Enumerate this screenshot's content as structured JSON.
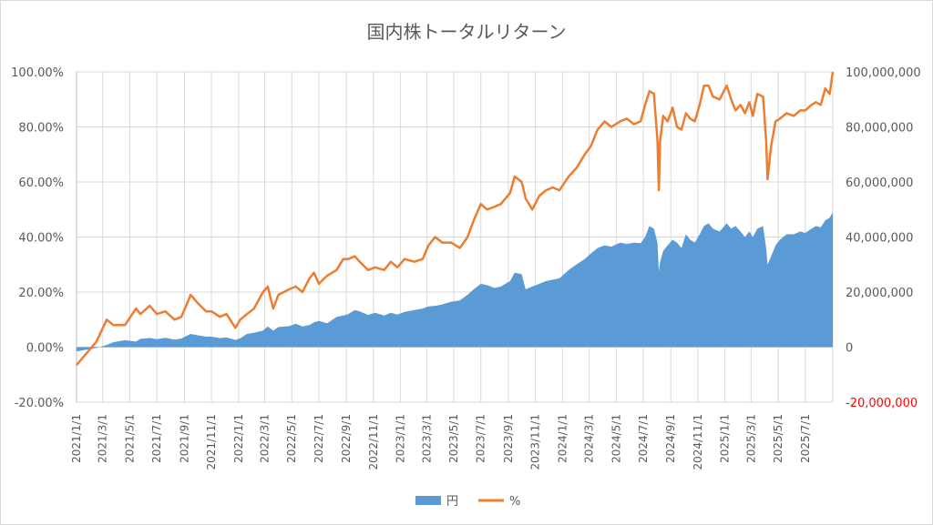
{
  "chart_data": {
    "type": "area+line",
    "title": "国内株トータルリターン",
    "legend": {
      "placement": "bottom",
      "entries": [
        "円",
        "%"
      ]
    },
    "colors": {
      "yen": "#5b9bd5",
      "pct": "#ed7d31",
      "grid": "#d9d9d9",
      "negative_label": "#ff0000"
    },
    "grid": true,
    "x_range": [
      "2021-01-01",
      "2025-09-01"
    ],
    "x_tick_labels": [
      "2021/1/1",
      "2021/3/1",
      "2021/5/1",
      "2021/7/1",
      "2021/9/1",
      "2021/11/1",
      "2022/1/1",
      "2022/3/1",
      "2022/5/1",
      "2022/7/1",
      "2022/9/1",
      "2022/11/1",
      "2023/1/1",
      "2023/3/1",
      "2023/5/1",
      "2023/7/1",
      "2023/9/1",
      "2023/11/1",
      "2024/1/1",
      "2024/3/1",
      "2024/5/1",
      "2024/7/1",
      "2024/9/1",
      "2024/11/1",
      "2025/1/1",
      "2025/3/1",
      "2025/5/1",
      "2025/7/1"
    ],
    "y_left": {
      "min": -20,
      "max": 100,
      "tick_labels": [
        "100.00%",
        "80.00%",
        "60.00%",
        "40.00%",
        "20.00%",
        "0.00%",
        "-20.00%"
      ]
    },
    "y_right": {
      "min": -20000000,
      "max": 100000000,
      "tick_labels": [
        "100,000,000",
        "80,000,000",
        "60,000,000",
        "40,000,000",
        "20,000,000",
        "0",
        "-20,000,000"
      ]
    },
    "series": [
      {
        "name": "円",
        "kind": "area",
        "axis": "right",
        "x": [
          "2021-01-01",
          "2021-02-15",
          "2021-03-10",
          "2021-03-25",
          "2021-04-20",
          "2021-05-15",
          "2021-05-25",
          "2021-06-15",
          "2021-07-01",
          "2021-07-20",
          "2021-08-10",
          "2021-08-25",
          "2021-09-05",
          "2021-09-15",
          "2021-10-01",
          "2021-10-20",
          "2021-11-01",
          "2021-11-20",
          "2021-12-05",
          "2021-12-25",
          "2022-01-05",
          "2022-01-20",
          "2022-02-05",
          "2022-02-25",
          "2022-03-08",
          "2022-03-20",
          "2022-04-01",
          "2022-04-25",
          "2022-05-10",
          "2022-05-25",
          "2022-06-10",
          "2022-06-20",
          "2022-07-01",
          "2022-07-20",
          "2022-08-10",
          "2022-08-25",
          "2022-09-05",
          "2022-09-20",
          "2022-10-01",
          "2022-10-20",
          "2022-11-05",
          "2022-11-25",
          "2022-12-10",
          "2022-12-25",
          "2023-01-10",
          "2023-02-01",
          "2023-02-20",
          "2023-03-05",
          "2023-03-20",
          "2023-04-05",
          "2023-04-25",
          "2023-05-15",
          "2023-06-01",
          "2023-06-15",
          "2023-07-01",
          "2023-07-15",
          "2023-08-01",
          "2023-08-15",
          "2023-09-05",
          "2023-09-15",
          "2023-10-01",
          "2023-10-10",
          "2023-10-25",
          "2023-11-10",
          "2023-11-25",
          "2023-12-10",
          "2023-12-25",
          "2024-01-15",
          "2024-02-01",
          "2024-02-20",
          "2024-03-05",
          "2024-03-20",
          "2024-04-05",
          "2024-04-20",
          "2024-05-10",
          "2024-05-25",
          "2024-06-10",
          "2024-06-25",
          "2024-07-05",
          "2024-07-15",
          "2024-07-25",
          "2024-08-02",
          "2024-08-05",
          "2024-08-08",
          "2024-08-15",
          "2024-08-25",
          "2024-09-05",
          "2024-09-15",
          "2024-09-25",
          "2024-10-05",
          "2024-10-15",
          "2024-10-25",
          "2024-11-05",
          "2024-11-15",
          "2024-11-25",
          "2024-12-05",
          "2024-12-20",
          "2025-01-05",
          "2025-01-15",
          "2025-01-25",
          "2025-02-05",
          "2025-02-15",
          "2025-02-25",
          "2025-03-05",
          "2025-03-15",
          "2025-03-28",
          "2025-04-04",
          "2025-04-07",
          "2025-04-15",
          "2025-04-25",
          "2025-05-05",
          "2025-05-20",
          "2025-06-05",
          "2025-06-20",
          "2025-07-01",
          "2025-07-15",
          "2025-07-25",
          "2025-08-05",
          "2025-08-15",
          "2025-08-25",
          "2025-09-01"
        ],
        "values": [
          -1600000,
          -300000,
          800000,
          1800000,
          2500000,
          2000000,
          3000000,
          3300000,
          2900000,
          3400000,
          2700000,
          3100000,
          4000000,
          4800000,
          4300000,
          3800000,
          3800000,
          3300000,
          3500000,
          2600000,
          3200000,
          4800000,
          5200000,
          6000000,
          7500000,
          6000000,
          7300000,
          7600000,
          8500000,
          7500000,
          8000000,
          9000000,
          9500000,
          8700000,
          11000000,
          11500000,
          12000000,
          13500000,
          13000000,
          11700000,
          12500000,
          11500000,
          12500000,
          11800000,
          12800000,
          13500000,
          14000000,
          14800000,
          15000000,
          15500000,
          16500000,
          17000000,
          19000000,
          21000000,
          23000000,
          22500000,
          21500000,
          22000000,
          24000000,
          27000000,
          26500000,
          21000000,
          22000000,
          23000000,
          24000000,
          24500000,
          25000000,
          28000000,
          30000000,
          32000000,
          34000000,
          36000000,
          37000000,
          36500000,
          38000000,
          37500000,
          38000000,
          37800000,
          40000000,
          44000000,
          43000000,
          38000000,
          27500000,
          31000000,
          35000000,
          37000000,
          39000000,
          38000000,
          36000000,
          41000000,
          39000000,
          38000000,
          41000000,
          44000000,
          45000000,
          43000000,
          42000000,
          45000000,
          43000000,
          44000000,
          42000000,
          40000000,
          42000000,
          40000000,
          43000000,
          44000000,
          36000000,
          30000000,
          33000000,
          37000000,
          39000000,
          41000000,
          41000000,
          42000000,
          41500000,
          43000000,
          44000000,
          43500000,
          46000000,
          47000000,
          49000000
        ]
      },
      {
        "name": "%",
        "kind": "line",
        "axis": "left",
        "x": [
          "2021-01-01",
          "2021-02-15",
          "2021-03-10",
          "2021-03-25",
          "2021-04-20",
          "2021-05-15",
          "2021-05-25",
          "2021-06-15",
          "2021-07-01",
          "2021-07-20",
          "2021-08-10",
          "2021-08-25",
          "2021-09-05",
          "2021-09-15",
          "2021-10-01",
          "2021-10-20",
          "2021-11-01",
          "2021-11-20",
          "2021-12-05",
          "2021-12-25",
          "2022-01-05",
          "2022-01-20",
          "2022-02-05",
          "2022-02-25",
          "2022-03-08",
          "2022-03-20",
          "2022-04-01",
          "2022-04-25",
          "2022-05-10",
          "2022-05-25",
          "2022-06-10",
          "2022-06-20",
          "2022-07-01",
          "2022-07-20",
          "2022-08-10",
          "2022-08-25",
          "2022-09-05",
          "2022-09-20",
          "2022-10-01",
          "2022-10-20",
          "2022-11-05",
          "2022-11-25",
          "2022-12-10",
          "2022-12-25",
          "2023-01-10",
          "2023-02-01",
          "2023-02-20",
          "2023-03-05",
          "2023-03-20",
          "2023-04-05",
          "2023-04-25",
          "2023-05-15",
          "2023-06-01",
          "2023-06-15",
          "2023-07-01",
          "2023-07-15",
          "2023-08-01",
          "2023-08-15",
          "2023-09-05",
          "2023-09-15",
          "2023-10-01",
          "2023-10-10",
          "2023-10-25",
          "2023-11-10",
          "2023-11-25",
          "2023-12-10",
          "2023-12-25",
          "2024-01-15",
          "2024-02-01",
          "2024-02-20",
          "2024-03-05",
          "2024-03-20",
          "2024-04-05",
          "2024-04-20",
          "2024-05-10",
          "2024-05-25",
          "2024-06-10",
          "2024-06-25",
          "2024-07-05",
          "2024-07-15",
          "2024-07-25",
          "2024-08-02",
          "2024-08-05",
          "2024-08-08",
          "2024-08-15",
          "2024-08-25",
          "2024-09-05",
          "2024-09-15",
          "2024-09-25",
          "2024-10-05",
          "2024-10-15",
          "2024-10-25",
          "2024-11-05",
          "2024-11-15",
          "2024-11-25",
          "2024-12-05",
          "2024-12-20",
          "2025-01-05",
          "2025-01-15",
          "2025-01-25",
          "2025-02-05",
          "2025-02-15",
          "2025-02-25",
          "2025-03-05",
          "2025-03-15",
          "2025-03-28",
          "2025-04-04",
          "2025-04-07",
          "2025-04-15",
          "2025-04-25",
          "2025-05-05",
          "2025-05-20",
          "2025-06-05",
          "2025-06-20",
          "2025-07-01",
          "2025-07-15",
          "2025-07-25",
          "2025-08-05",
          "2025-08-15",
          "2025-08-25",
          "2025-09-01"
        ],
        "values": [
          -6.5,
          2,
          10,
          8,
          8,
          14,
          12,
          15,
          12,
          13,
          10,
          11,
          15,
          19,
          16,
          13,
          13,
          11,
          12,
          7,
          10,
          12,
          14,
          20,
          22,
          14,
          19,
          21,
          22,
          20,
          25,
          27,
          23,
          26,
          28,
          32,
          32,
          33,
          31,
          28,
          29,
          28,
          31,
          29,
          32,
          31,
          32,
          37,
          40,
          38,
          38,
          36,
          40,
          46,
          52,
          50,
          51,
          52,
          56,
          62,
          60,
          54,
          50,
          55,
          57,
          58,
          57,
          62,
          65,
          70,
          73,
          79,
          82,
          80,
          82,
          83,
          81,
          82,
          88,
          93,
          92,
          75,
          57,
          75,
          84,
          82,
          87,
          80,
          79,
          85,
          83,
          82,
          88,
          95,
          95,
          91,
          90,
          95,
          90,
          86,
          88,
          85,
          89,
          84,
          92,
          91,
          75,
          61,
          73,
          82,
          83,
          85,
          84,
          86,
          86,
          88,
          89,
          88,
          94,
          92,
          100
        ]
      }
    ]
  }
}
